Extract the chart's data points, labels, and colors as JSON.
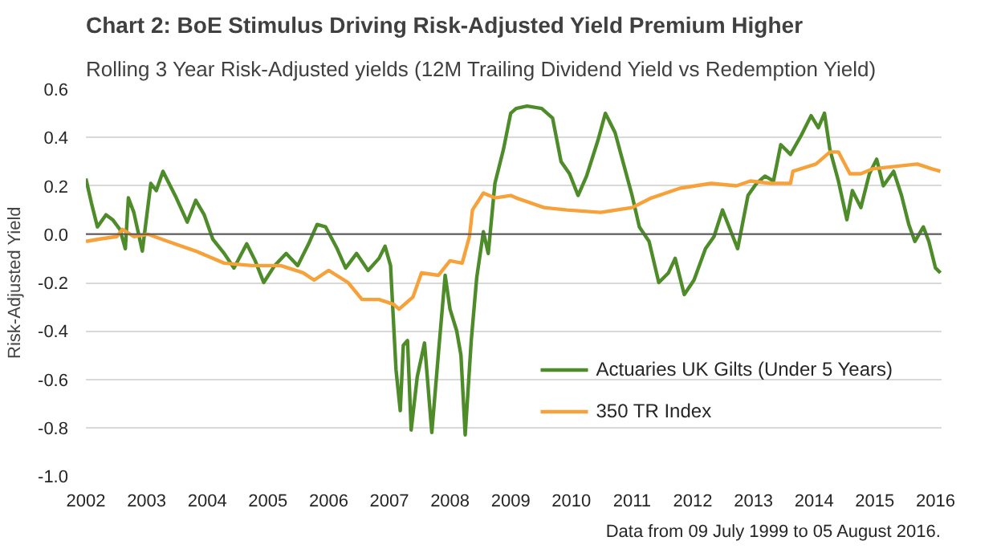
{
  "chart_data": {
    "type": "line",
    "title": "Chart 2: BoE Stimulus Driving Risk-Adjusted Yield Premium Higher",
    "subtitle": "Rolling 3 Year Risk-Adjusted yields (12M Trailing Dividend Yield vs Redemption Yield)",
    "ylabel": "Risk-Adjusted Yield",
    "annotations": [
      "Data from 09 July 1999 to 05 August 2016."
    ],
    "xlim": [
      2002,
      2016.1
    ],
    "xticks": [
      2002,
      2003,
      2004,
      2005,
      2006,
      2007,
      2008,
      2009,
      2010,
      2011,
      2012,
      2013,
      2014,
      2015,
      2016
    ],
    "ylim": [
      -1.0,
      0.6
    ],
    "yticks": [
      {
        "value": -1.0,
        "label": "-1.0"
      },
      {
        "value": -0.8,
        "label": "-0.8"
      },
      {
        "value": -0.6,
        "label": "-0.6"
      },
      {
        "value": -0.4,
        "label": "-0.4"
      },
      {
        "value": -0.2,
        "label": "-0.2"
      },
      {
        "value": 0,
        "label": "0.0"
      },
      {
        "value": 0.2,
        "label": "0.2"
      },
      {
        "value": 0.4,
        "label": "0.4"
      },
      {
        "value": 0.6,
        "label": "0.6"
      }
    ],
    "grid": "y",
    "legend": "bottom right",
    "line_style": "solid",
    "ref_lines": [
      {
        "axis": "y",
        "value": 0,
        "color": "#595959"
      }
    ],
    "series": [
      {
        "name": "Actuaries UK Gilts (Under 5 Years)",
        "color": "#4e8c2a",
        "x": [
          2002.0,
          2002.09,
          2002.19,
          2002.33,
          2002.44,
          2002.56,
          2002.65,
          2002.7,
          2002.79,
          2002.93,
          2003.07,
          2003.16,
          2003.27,
          2003.49,
          2003.67,
          2003.81,
          2003.95,
          2004.09,
          2004.28,
          2004.44,
          2004.65,
          2004.79,
          2004.93,
          2005.11,
          2005.3,
          2005.49,
          2005.67,
          2005.81,
          2005.95,
          2006.14,
          2006.28,
          2006.46,
          2006.65,
          2006.83,
          2006.93,
          2007.02,
          2007.11,
          2007.18,
          2007.23,
          2007.3,
          2007.36,
          2007.46,
          2007.58,
          2007.7,
          2007.81,
          2007.92,
          2008.0,
          2008.11,
          2008.18,
          2008.25,
          2008.35,
          2008.44,
          2008.55,
          2008.63,
          2008.74,
          2008.88,
          2009.0,
          2009.09,
          2009.27,
          2009.51,
          2009.69,
          2009.83,
          2009.97,
          2010.11,
          2010.25,
          2010.44,
          2010.56,
          2010.72,
          2010.86,
          2011.0,
          2011.12,
          2011.28,
          2011.44,
          2011.6,
          2011.71,
          2011.86,
          2012.02,
          2012.21,
          2012.35,
          2012.49,
          2012.63,
          2012.74,
          2012.91,
          2013.05,
          2013.19,
          2013.33,
          2013.45,
          2013.61,
          2013.79,
          2013.95,
          2014.07,
          2014.17,
          2014.26,
          2014.4,
          2014.54,
          2014.63,
          2014.77,
          2014.91,
          2015.03,
          2015.14,
          2015.31,
          2015.44,
          2015.56,
          2015.66,
          2015.8,
          2015.89,
          2016.0,
          2016.08
        ],
        "values": [
          0.23,
          0.13,
          0.03,
          0.08,
          0.06,
          0.02,
          -0.06,
          0.15,
          0.09,
          -0.07,
          0.21,
          0.18,
          0.26,
          0.15,
          0.05,
          0.14,
          0.08,
          -0.02,
          -0.08,
          -0.14,
          -0.04,
          -0.11,
          -0.2,
          -0.13,
          -0.08,
          -0.13,
          -0.04,
          0.04,
          0.03,
          -0.06,
          -0.14,
          -0.08,
          -0.15,
          -0.1,
          -0.05,
          -0.13,
          -0.56,
          -0.73,
          -0.46,
          -0.44,
          -0.81,
          -0.59,
          -0.45,
          -0.82,
          -0.49,
          -0.17,
          -0.31,
          -0.4,
          -0.5,
          -0.83,
          -0.44,
          -0.18,
          0.01,
          -0.08,
          0.21,
          0.35,
          0.5,
          0.52,
          0.53,
          0.52,
          0.48,
          0.3,
          0.25,
          0.16,
          0.24,
          0.39,
          0.5,
          0.42,
          0.29,
          0.16,
          0.03,
          -0.03,
          -0.2,
          -0.16,
          -0.1,
          -0.25,
          -0.19,
          -0.06,
          -0.01,
          0.1,
          0.01,
          -0.06,
          0.16,
          0.21,
          0.24,
          0.22,
          0.37,
          0.33,
          0.41,
          0.49,
          0.44,
          0.5,
          0.35,
          0.22,
          0.06,
          0.18,
          0.11,
          0.25,
          0.31,
          0.2,
          0.26,
          0.16,
          0.04,
          -0.03,
          0.03,
          -0.03,
          -0.14,
          -0.16
        ]
      },
      {
        "name": "350 TR Index",
        "color": "#f7a13a",
        "x": [
          2002.0,
          2002.23,
          2002.51,
          2002.6,
          2002.79,
          2003.02,
          2003.35,
          2003.81,
          2004.28,
          2004.74,
          2005.21,
          2005.58,
          2005.76,
          2006.0,
          2006.32,
          2006.55,
          2006.83,
          2007.07,
          2007.16,
          2007.39,
          2007.53,
          2007.81,
          2008.0,
          2008.2,
          2008.32,
          2008.37,
          2008.55,
          2008.74,
          2009.0,
          2009.09,
          2009.55,
          2009.93,
          2010.48,
          2011.0,
          2011.32,
          2011.79,
          2012.3,
          2012.72,
          2012.95,
          2013.28,
          2013.61,
          2013.65,
          2014.03,
          2014.26,
          2014.4,
          2014.59,
          2014.77,
          2014.96,
          2015.33,
          2015.7,
          2015.94,
          2016.08
        ],
        "values": [
          -0.03,
          -0.02,
          -0.01,
          0.02,
          -0.01,
          0.0,
          -0.03,
          -0.07,
          -0.12,
          -0.13,
          -0.13,
          -0.16,
          -0.19,
          -0.15,
          -0.2,
          -0.27,
          -0.27,
          -0.29,
          -0.31,
          -0.26,
          -0.16,
          -0.17,
          -0.11,
          -0.12,
          -0.01,
          0.1,
          0.17,
          0.15,
          0.16,
          0.15,
          0.11,
          0.1,
          0.09,
          0.11,
          0.15,
          0.19,
          0.21,
          0.2,
          0.22,
          0.21,
          0.21,
          0.26,
          0.29,
          0.34,
          0.34,
          0.25,
          0.25,
          0.27,
          0.28,
          0.29,
          0.27,
          0.26
        ]
      }
    ]
  }
}
